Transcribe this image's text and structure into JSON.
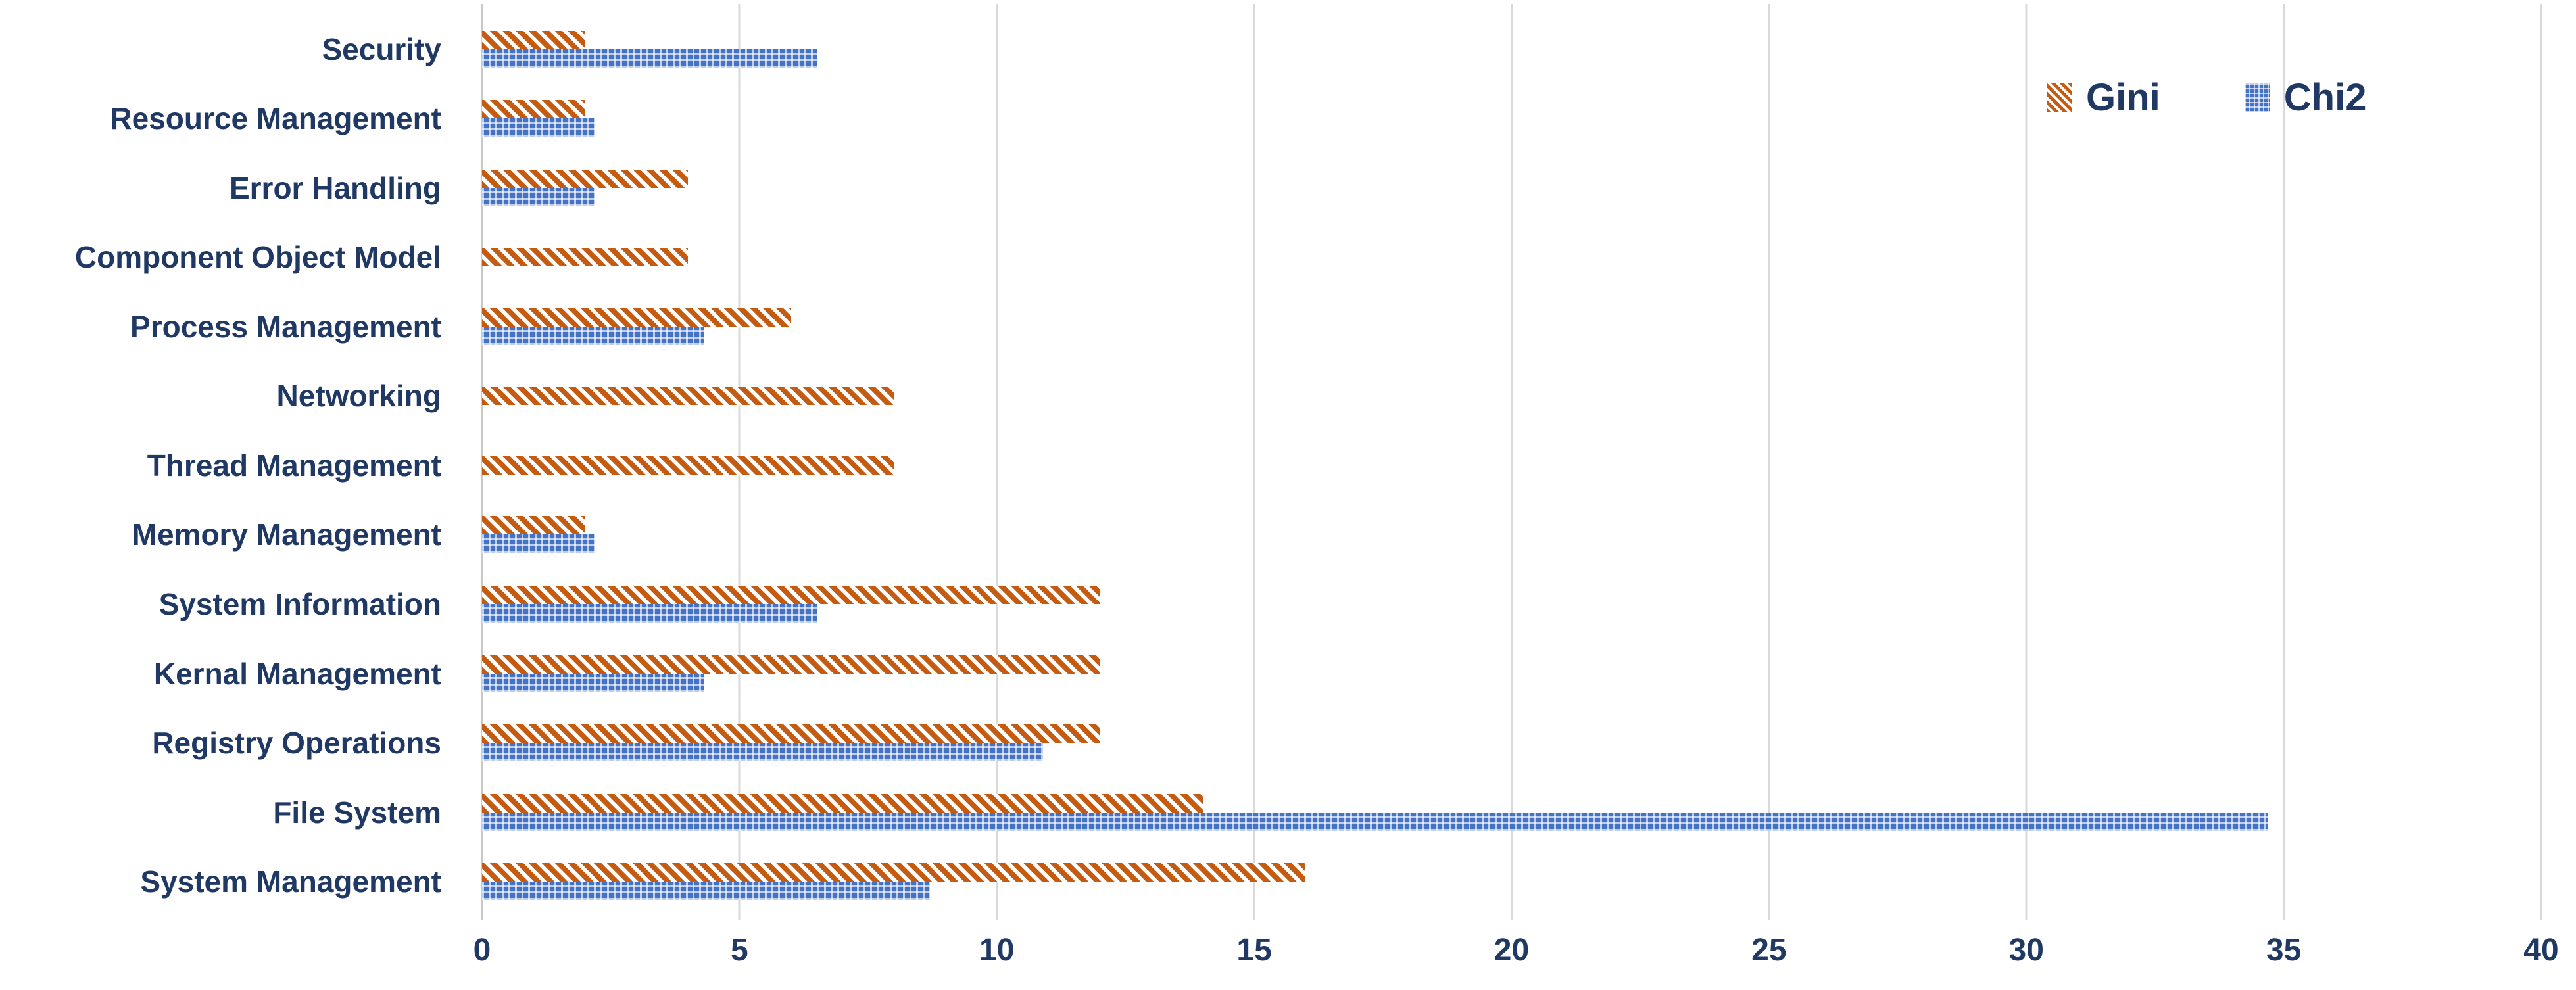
{
  "chart_data": {
    "type": "bar",
    "orientation": "horizontal",
    "title": "",
    "categories": [
      "Security",
      "Resource Management",
      "Error Handling",
      "Component Object Model",
      "Process Management",
      "Networking",
      "Thread Management",
      "Memory Management",
      "System Information",
      "Kernal Management",
      "Registry Operations",
      "File System",
      "System Management"
    ],
    "series": [
      {
        "name": "Gini",
        "color": "#c55a11",
        "pattern": "diagonal-hatch",
        "values": [
          2,
          2,
          4,
          4,
          6,
          8,
          8,
          2,
          12,
          12,
          12,
          14,
          16
        ]
      },
      {
        "name": "Chi2",
        "color": "#4472c4",
        "pattern": "dotted-grid",
        "values": [
          6.5,
          2.2,
          2.2,
          0,
          4.3,
          0,
          0,
          2.2,
          6.5,
          4.3,
          10.9,
          34.7,
          8.7
        ]
      }
    ],
    "xlabel": "",
    "ylabel": "",
    "xlim": [
      0,
      40
    ],
    "x_ticks": [
      0,
      5,
      10,
      15,
      20,
      25,
      30,
      35,
      40
    ],
    "grid": "vertical-only",
    "gridline_color": "#d9d9d9",
    "axis_text_color": "#1f3864",
    "legend_position": "top-right"
  }
}
